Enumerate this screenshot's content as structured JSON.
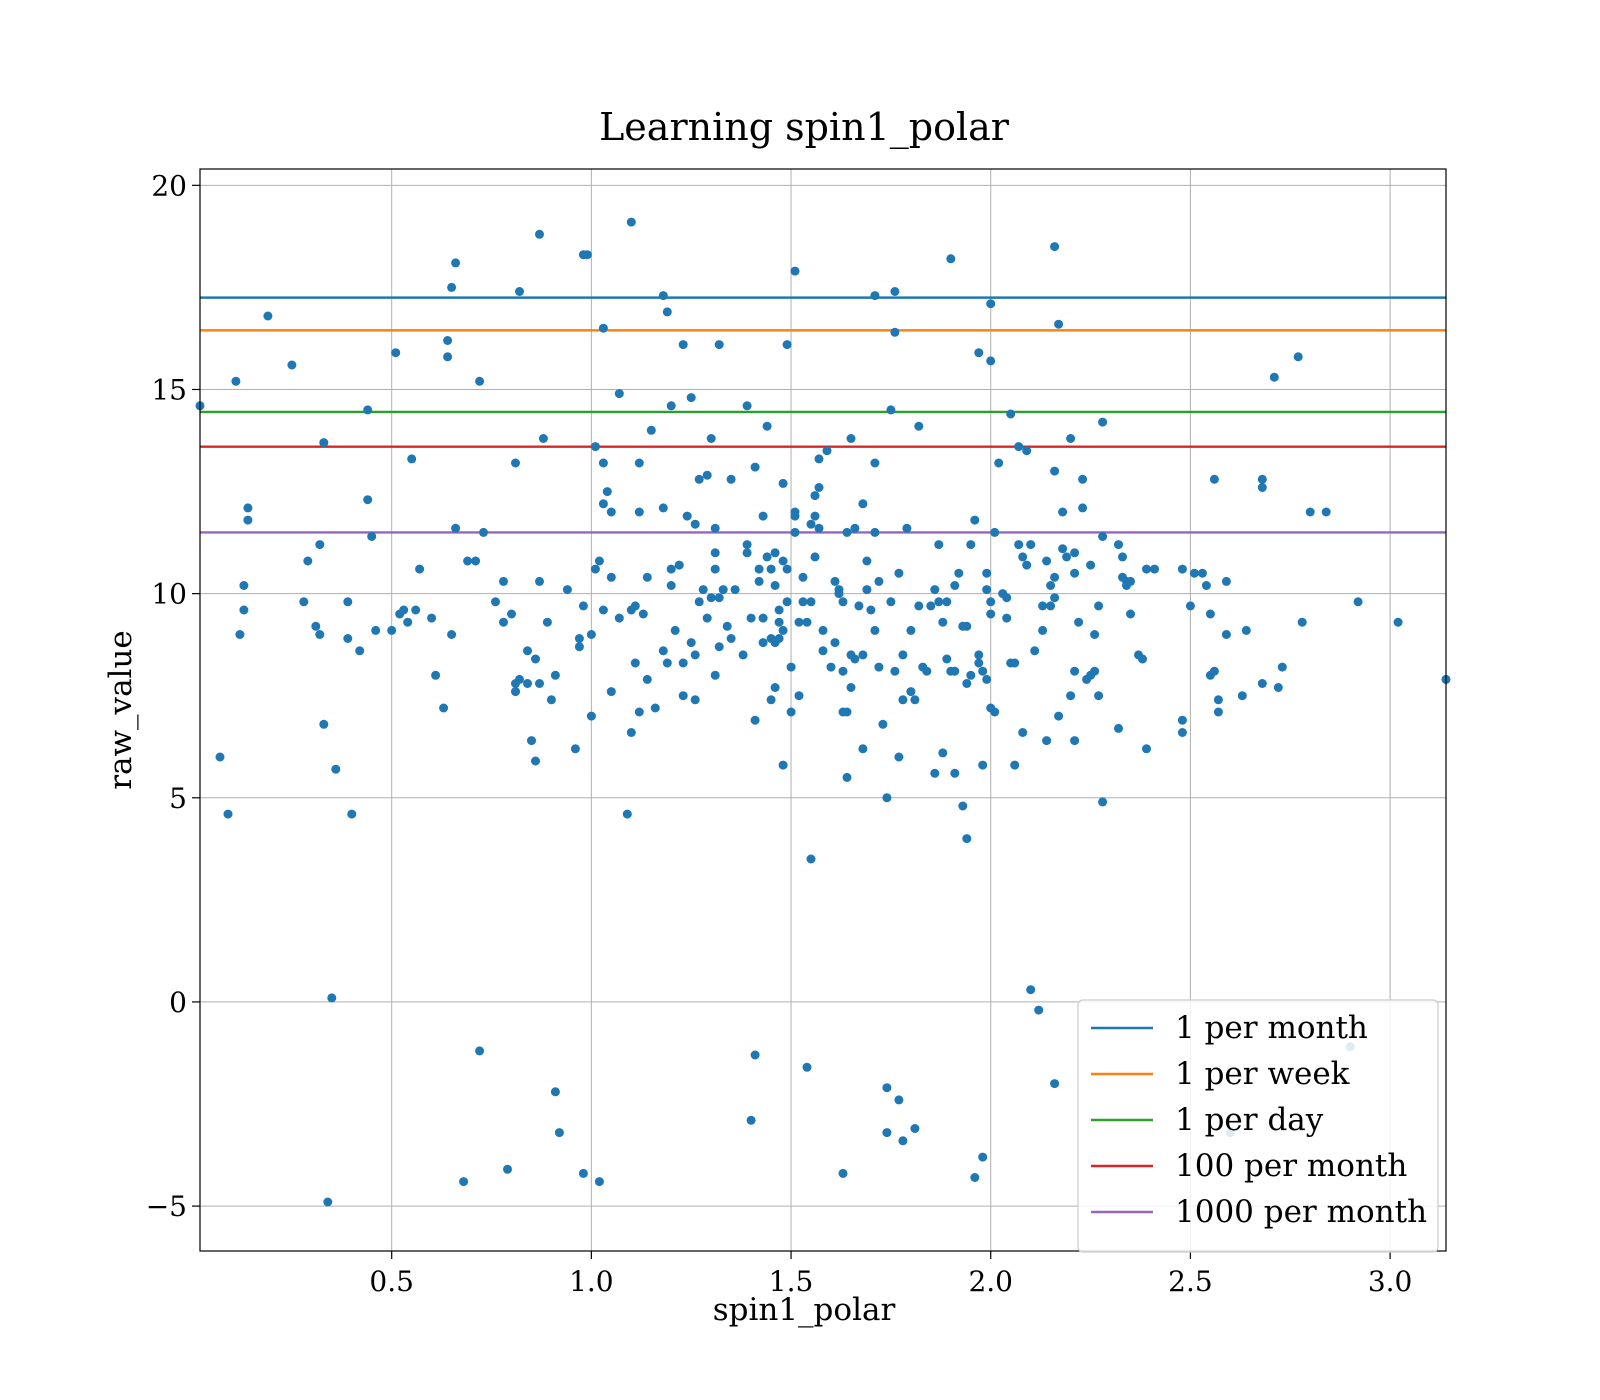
{
  "colors": {
    "points": "#1f77b4",
    "grid": "#b0b0b0",
    "axes": "#000000"
  },
  "chart_data": {
    "type": "scatter",
    "title": "Learning spin1_polar",
    "xlabel": "spin1_polar",
    "ylabel": "raw_value",
    "xlim": [
      0.02,
      3.14
    ],
    "ylim": [
      -6.1,
      20.4
    ],
    "xticks": [
      0.5,
      1.0,
      1.5,
      2.0,
      2.5,
      3.0
    ],
    "xtick_labels": [
      "0.5",
      "1.0",
      "1.5",
      "2.0",
      "2.5",
      "3.0"
    ],
    "yticks": [
      -5,
      0,
      5,
      10,
      15,
      20
    ],
    "ytick_labels": [
      "−5",
      "0",
      "5",
      "10",
      "15",
      "20"
    ],
    "grid": true,
    "legend_position": "lower-right",
    "hlines": [
      {
        "name": "1 per month",
        "y": 17.25,
        "color": "#1f77b4"
      },
      {
        "name": "1 per week",
        "y": 16.45,
        "color": "#ff7f0e"
      },
      {
        "name": "1 per day",
        "y": 14.45,
        "color": "#2ca02c"
      },
      {
        "name": "100 per month",
        "y": 13.6,
        "color": "#d62728"
      },
      {
        "name": "1000 per month",
        "y": 11.5,
        "color": "#9467bd"
      }
    ],
    "points": [
      [
        0.02,
        14.6
      ],
      [
        0.07,
        6.0
      ],
      [
        0.09,
        4.6
      ],
      [
        0.11,
        15.2
      ],
      [
        0.12,
        9.0
      ],
      [
        0.13,
        9.6
      ],
      [
        0.13,
        10.2
      ],
      [
        0.14,
        11.8
      ],
      [
        0.14,
        12.1
      ],
      [
        0.19,
        16.8
      ],
      [
        0.25,
        15.6
      ],
      [
        0.28,
        9.8
      ],
      [
        0.29,
        10.8
      ],
      [
        0.31,
        9.2
      ],
      [
        0.32,
        9.0
      ],
      [
        0.32,
        11.2
      ],
      [
        0.33,
        6.8
      ],
      [
        0.33,
        13.7
      ],
      [
        0.34,
        -4.9
      ],
      [
        0.35,
        0.1
      ],
      [
        0.36,
        5.7
      ],
      [
        0.39,
        9.8
      ],
      [
        0.39,
        8.9
      ],
      [
        0.4,
        4.6
      ],
      [
        0.42,
        8.6
      ],
      [
        0.44,
        12.3
      ],
      [
        0.44,
        14.5
      ],
      [
        0.45,
        11.4
      ],
      [
        0.46,
        9.1
      ],
      [
        0.5,
        9.1
      ],
      [
        0.51,
        15.9
      ],
      [
        0.52,
        9.5
      ],
      [
        0.53,
        9.6
      ],
      [
        0.54,
        9.3
      ],
      [
        0.55,
        13.3
      ],
      [
        0.56,
        9.6
      ],
      [
        0.57,
        10.6
      ],
      [
        0.6,
        9.4
      ],
      [
        0.61,
        8.0
      ],
      [
        0.63,
        7.2
      ],
      [
        0.64,
        16.2
      ],
      [
        0.64,
        15.8
      ],
      [
        0.65,
        17.5
      ],
      [
        0.66,
        18.1
      ],
      [
        0.65,
        9.0
      ],
      [
        0.66,
        11.6
      ],
      [
        0.68,
        -4.4
      ],
      [
        0.69,
        10.8
      ],
      [
        0.71,
        10.8
      ],
      [
        0.72,
        -1.2
      ],
      [
        0.72,
        15.2
      ],
      [
        0.73,
        11.5
      ],
      [
        0.76,
        9.8
      ],
      [
        0.78,
        10.3
      ],
      [
        0.78,
        9.3
      ],
      [
        0.79,
        -4.1
      ],
      [
        0.8,
        9.5
      ],
      [
        0.81,
        13.2
      ],
      [
        0.81,
        7.8
      ],
      [
        0.81,
        7.6
      ],
      [
        0.82,
        17.4
      ],
      [
        0.82,
        7.9
      ],
      [
        0.84,
        7.8
      ],
      [
        0.84,
        8.6
      ],
      [
        0.85,
        6.4
      ],
      [
        0.86,
        5.9
      ],
      [
        0.86,
        8.4
      ],
      [
        0.87,
        18.8
      ],
      [
        0.87,
        7.8
      ],
      [
        0.87,
        10.3
      ],
      [
        0.88,
        13.8
      ],
      [
        0.89,
        9.3
      ],
      [
        0.9,
        7.4
      ],
      [
        0.91,
        8.0
      ],
      [
        0.91,
        -2.2
      ],
      [
        0.92,
        -3.2
      ],
      [
        0.94,
        10.1
      ],
      [
        0.96,
        6.2
      ],
      [
        0.97,
        8.7
      ],
      [
        0.97,
        8.9
      ],
      [
        0.98,
        9.7
      ],
      [
        0.98,
        -4.2
      ],
      [
        0.98,
        18.3
      ],
      [
        0.99,
        18.3
      ],
      [
        1.0,
        7.0
      ],
      [
        1.0,
        9.0
      ],
      [
        1.01,
        13.6
      ],
      [
        1.01,
        10.6
      ],
      [
        1.02,
        10.8
      ],
      [
        1.02,
        -4.4
      ],
      [
        1.03,
        12.2
      ],
      [
        1.03,
        13.2
      ],
      [
        1.03,
        16.5
      ],
      [
        1.03,
        9.6
      ],
      [
        1.04,
        12.5
      ],
      [
        1.05,
        7.6
      ],
      [
        1.05,
        12.0
      ],
      [
        1.05,
        10.4
      ],
      [
        1.07,
        14.9
      ],
      [
        1.07,
        9.4
      ],
      [
        1.09,
        4.6
      ],
      [
        1.1,
        9.6
      ],
      [
        1.1,
        19.1
      ],
      [
        1.1,
        6.6
      ],
      [
        1.11,
        8.3
      ],
      [
        1.11,
        9.7
      ],
      [
        1.12,
        7.1
      ],
      [
        1.12,
        13.2
      ],
      [
        1.12,
        12.0
      ],
      [
        1.13,
        9.5
      ],
      [
        1.14,
        10.4
      ],
      [
        1.14,
        7.9
      ],
      [
        1.15,
        14.0
      ],
      [
        1.16,
        7.2
      ],
      [
        1.18,
        12.1
      ],
      [
        1.18,
        8.6
      ],
      [
        1.18,
        17.3
      ],
      [
        1.19,
        16.9
      ],
      [
        1.19,
        8.3
      ],
      [
        1.2,
        10.2
      ],
      [
        1.2,
        10.6
      ],
      [
        1.2,
        14.6
      ],
      [
        1.21,
        9.1
      ],
      [
        1.22,
        10.7
      ],
      [
        1.23,
        16.1
      ],
      [
        1.23,
        8.3
      ],
      [
        1.23,
        7.5
      ],
      [
        1.24,
        11.9
      ],
      [
        1.25,
        8.8
      ],
      [
        1.25,
        14.8
      ],
      [
        1.26,
        11.7
      ],
      [
        1.26,
        7.4
      ],
      [
        1.26,
        8.5
      ],
      [
        1.27,
        12.8
      ],
      [
        1.27,
        9.8
      ],
      [
        1.28,
        10.1
      ],
      [
        1.29,
        12.9
      ],
      [
        1.29,
        9.4
      ],
      [
        1.3,
        13.8
      ],
      [
        1.3,
        9.9
      ],
      [
        1.31,
        8.0
      ],
      [
        1.31,
        10.6
      ],
      [
        1.31,
        11.0
      ],
      [
        1.31,
        11.6
      ],
      [
        1.32,
        9.9
      ],
      [
        1.32,
        8.7
      ],
      [
        1.32,
        16.1
      ],
      [
        1.33,
        10.1
      ],
      [
        1.34,
        9.2
      ],
      [
        1.35,
        12.8
      ],
      [
        1.35,
        8.9
      ],
      [
        1.36,
        10.1
      ],
      [
        1.38,
        8.5
      ],
      [
        1.39,
        11.2
      ],
      [
        1.39,
        14.6
      ],
      [
        1.39,
        11.0
      ],
      [
        1.4,
        -2.9
      ],
      [
        1.4,
        9.4
      ],
      [
        1.41,
        13.1
      ],
      [
        1.41,
        -1.3
      ],
      [
        1.41,
        6.9
      ],
      [
        1.42,
        10.3
      ],
      [
        1.42,
        10.6
      ],
      [
        1.43,
        8.8
      ],
      [
        1.43,
        9.4
      ],
      [
        1.43,
        11.9
      ],
      [
        1.44,
        10.9
      ],
      [
        1.44,
        14.1
      ],
      [
        1.45,
        7.4
      ],
      [
        1.45,
        8.9
      ],
      [
        1.45,
        10.6
      ],
      [
        1.46,
        11.0
      ],
      [
        1.46,
        7.7
      ],
      [
        1.46,
        10.2
      ],
      [
        1.46,
        8.8
      ],
      [
        1.47,
        9.3
      ],
      [
        1.47,
        9.6
      ],
      [
        1.47,
        8.9
      ],
      [
        1.48,
        5.8
      ],
      [
        1.48,
        10.8
      ],
      [
        1.48,
        12.7
      ],
      [
        1.48,
        9.1
      ],
      [
        1.49,
        16.1
      ],
      [
        1.49,
        10.6
      ],
      [
        1.49,
        9.8
      ],
      [
        1.5,
        7.1
      ],
      [
        1.5,
        8.2
      ],
      [
        1.51,
        17.9
      ],
      [
        1.51,
        11.5
      ],
      [
        1.51,
        11.9
      ],
      [
        1.51,
        12.0
      ],
      [
        1.52,
        7.5
      ],
      [
        1.52,
        9.3
      ],
      [
        1.53,
        10.4
      ],
      [
        1.53,
        9.8
      ],
      [
        1.54,
        -1.6
      ],
      [
        1.54,
        9.3
      ],
      [
        1.55,
        11.7
      ],
      [
        1.55,
        9.8
      ],
      [
        1.55,
        3.5
      ],
      [
        1.56,
        10.9
      ],
      [
        1.56,
        11.9
      ],
      [
        1.56,
        12.4
      ],
      [
        1.57,
        12.6
      ],
      [
        1.57,
        13.3
      ],
      [
        1.57,
        11.6
      ],
      [
        1.58,
        9.1
      ],
      [
        1.58,
        8.6
      ],
      [
        1.59,
        13.5
      ],
      [
        1.6,
        8.2
      ],
      [
        1.61,
        10.3
      ],
      [
        1.61,
        8.8
      ],
      [
        1.62,
        10.1
      ],
      [
        1.62,
        10.0
      ],
      [
        1.63,
        7.1
      ],
      [
        1.63,
        8.1
      ],
      [
        1.63,
        9.8
      ],
      [
        1.63,
        -4.2
      ],
      [
        1.64,
        5.5
      ],
      [
        1.64,
        7.1
      ],
      [
        1.64,
        11.5
      ],
      [
        1.65,
        13.8
      ],
      [
        1.65,
        8.5
      ],
      [
        1.65,
        7.7
      ],
      [
        1.66,
        11.6
      ],
      [
        1.66,
        8.4
      ],
      [
        1.67,
        9.7
      ],
      [
        1.68,
        12.2
      ],
      [
        1.68,
        8.5
      ],
      [
        1.68,
        6.2
      ],
      [
        1.69,
        10.8
      ],
      [
        1.69,
        10.1
      ],
      [
        1.7,
        9.6
      ],
      [
        1.71,
        11.5
      ],
      [
        1.71,
        17.3
      ],
      [
        1.71,
        13.2
      ],
      [
        1.71,
        9.1
      ],
      [
        1.72,
        10.3
      ],
      [
        1.72,
        8.2
      ],
      [
        1.73,
        6.8
      ],
      [
        1.74,
        -2.1
      ],
      [
        1.74,
        -3.2
      ],
      [
        1.74,
        5.0
      ],
      [
        1.75,
        9.8
      ],
      [
        1.75,
        14.5
      ],
      [
        1.76,
        8.1
      ],
      [
        1.76,
        17.4
      ],
      [
        1.76,
        16.4
      ],
      [
        1.77,
        6.0
      ],
      [
        1.77,
        -2.4
      ],
      [
        1.77,
        10.5
      ],
      [
        1.78,
        -3.4
      ],
      [
        1.78,
        8.5
      ],
      [
        1.78,
        7.4
      ],
      [
        1.79,
        11.6
      ],
      [
        1.8,
        7.6
      ],
      [
        1.8,
        9.1
      ],
      [
        1.81,
        7.4
      ],
      [
        1.81,
        -3.1
      ],
      [
        1.82,
        14.1
      ],
      [
        1.82,
        9.7
      ],
      [
        1.83,
        8.2
      ],
      [
        1.84,
        8.1
      ],
      [
        1.85,
        9.7
      ],
      [
        1.86,
        5.6
      ],
      [
        1.86,
        10.1
      ],
      [
        1.87,
        9.8
      ],
      [
        1.87,
        11.2
      ],
      [
        1.88,
        9.3
      ],
      [
        1.88,
        6.1
      ],
      [
        1.89,
        9.8
      ],
      [
        1.89,
        8.4
      ],
      [
        1.9,
        18.2
      ],
      [
        1.9,
        8.1
      ],
      [
        1.91,
        5.6
      ],
      [
        1.91,
        8.1
      ],
      [
        1.91,
        10.2
      ],
      [
        1.92,
        10.5
      ],
      [
        1.93,
        9.2
      ],
      [
        1.93,
        4.8
      ],
      [
        1.94,
        4.0
      ],
      [
        1.94,
        9.2
      ],
      [
        1.94,
        7.8
      ],
      [
        1.95,
        11.2
      ],
      [
        1.95,
        8.0
      ],
      [
        1.96,
        11.8
      ],
      [
        1.96,
        -4.3
      ],
      [
        1.97,
        8.5
      ],
      [
        1.97,
        15.9
      ],
      [
        1.97,
        8.3
      ],
      [
        1.98,
        8.1
      ],
      [
        1.98,
        -3.8
      ],
      [
        1.98,
        5.8
      ],
      [
        1.99,
        7.9
      ],
      [
        1.99,
        10.5
      ],
      [
        1.99,
        10.1
      ],
      [
        2.0,
        17.1
      ],
      [
        2.0,
        15.7
      ],
      [
        2.0,
        9.5
      ],
      [
        2.0,
        9.8
      ],
      [
        2.0,
        7.2
      ],
      [
        2.01,
        7.1
      ],
      [
        2.01,
        11.5
      ],
      [
        2.02,
        13.2
      ],
      [
        2.03,
        10.0
      ],
      [
        2.04,
        9.9
      ],
      [
        2.04,
        9.4
      ],
      [
        2.05,
        8.3
      ],
      [
        2.05,
        14.4
      ],
      [
        2.06,
        8.3
      ],
      [
        2.06,
        5.8
      ],
      [
        2.07,
        13.6
      ],
      [
        2.07,
        11.2
      ],
      [
        2.08,
        6.6
      ],
      [
        2.08,
        10.9
      ],
      [
        2.09,
        13.5
      ],
      [
        2.09,
        10.7
      ],
      [
        2.1,
        0.3
      ],
      [
        2.1,
        11.2
      ],
      [
        2.11,
        8.6
      ],
      [
        2.12,
        -0.2
      ],
      [
        2.13,
        9.7
      ],
      [
        2.13,
        9.1
      ],
      [
        2.14,
        6.4
      ],
      [
        2.14,
        10.8
      ],
      [
        2.15,
        10.2
      ],
      [
        2.15,
        9.7
      ],
      [
        2.16,
        10.4
      ],
      [
        2.16,
        13.0
      ],
      [
        2.16,
        9.9
      ],
      [
        2.16,
        18.5
      ],
      [
        2.16,
        -2.0
      ],
      [
        2.17,
        16.6
      ],
      [
        2.17,
        7.0
      ],
      [
        2.18,
        11.1
      ],
      [
        2.18,
        12.0
      ],
      [
        2.19,
        10.9
      ],
      [
        2.2,
        13.8
      ],
      [
        2.2,
        7.5
      ],
      [
        2.21,
        10.5
      ],
      [
        2.21,
        6.4
      ],
      [
        2.21,
        11.0
      ],
      [
        2.21,
        8.1
      ],
      [
        2.22,
        9.3
      ],
      [
        2.23,
        12.8
      ],
      [
        2.23,
        12.1
      ],
      [
        2.24,
        7.9
      ],
      [
        2.25,
        10.7
      ],
      [
        2.25,
        8.0
      ],
      [
        2.26,
        8.1
      ],
      [
        2.26,
        9.0
      ],
      [
        2.27,
        9.7
      ],
      [
        2.27,
        7.5
      ],
      [
        2.28,
        14.2
      ],
      [
        2.28,
        4.9
      ],
      [
        2.28,
        11.4
      ],
      [
        2.32,
        6.7
      ],
      [
        2.32,
        11.2
      ],
      [
        2.33,
        10.9
      ],
      [
        2.33,
        10.4
      ],
      [
        2.34,
        10.3
      ],
      [
        2.34,
        10.2
      ],
      [
        2.35,
        9.5
      ],
      [
        2.35,
        10.3
      ],
      [
        2.37,
        8.5
      ],
      [
        2.38,
        8.4
      ],
      [
        2.39,
        6.2
      ],
      [
        2.39,
        10.6
      ],
      [
        2.41,
        10.6
      ],
      [
        2.48,
        10.6
      ],
      [
        2.48,
        6.9
      ],
      [
        2.48,
        6.6
      ],
      [
        2.5,
        9.7
      ],
      [
        2.51,
        10.5
      ],
      [
        2.53,
        10.5
      ],
      [
        2.54,
        10.2
      ],
      [
        2.55,
        8.0
      ],
      [
        2.55,
        9.5
      ],
      [
        2.56,
        12.8
      ],
      [
        2.56,
        8.1
      ],
      [
        2.57,
        7.4
      ],
      [
        2.57,
        7.1
      ],
      [
        2.59,
        9.0
      ],
      [
        2.59,
        10.3
      ],
      [
        2.6,
        -3.2
      ],
      [
        2.63,
        7.5
      ],
      [
        2.64,
        9.1
      ],
      [
        2.68,
        12.8
      ],
      [
        2.68,
        12.6
      ],
      [
        2.68,
        7.8
      ],
      [
        2.71,
        15.3
      ],
      [
        2.72,
        7.7
      ],
      [
        2.73,
        8.2
      ],
      [
        2.77,
        15.8
      ],
      [
        2.78,
        9.3
      ],
      [
        2.8,
        12.0
      ],
      [
        2.84,
        12.0
      ],
      [
        2.9,
        -1.1
      ],
      [
        2.92,
        9.8
      ],
      [
        3.02,
        9.3
      ],
      [
        3.14,
        7.9
      ]
    ]
  }
}
